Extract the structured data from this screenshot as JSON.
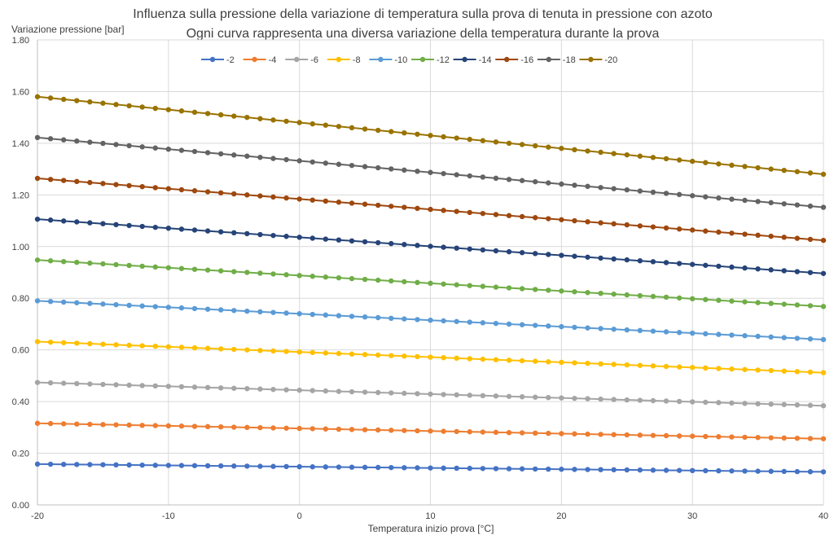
{
  "chart_data": {
    "type": "line",
    "title": "Influenza sulla pressione della variazione di temperatura sulla prova di tenuta in pressione con azoto",
    "subtitle": "Ogni curva rappresenta una diversa variazione della temperatura durante la prova",
    "xlabel": "Temperatura inizio prova [°C]",
    "ylabel": "Variazione pressione [bar]",
    "xlim": [
      -20,
      40
    ],
    "ylim": [
      0,
      1.8
    ],
    "x_ticks": [
      -20,
      -10,
      0,
      10,
      20,
      30,
      40
    ],
    "x_tick_labels": [
      "-20",
      "-10",
      "0",
      "10",
      "20",
      "30",
      "40"
    ],
    "y_ticks": [
      0,
      0.2,
      0.4,
      0.6,
      0.8,
      1.0,
      1.2,
      1.4,
      1.6,
      1.8
    ],
    "y_tick_labels": [
      "0.00",
      "0.20",
      "0.40",
      "0.60",
      "0.80",
      "1.00",
      "1.20",
      "1.40",
      "1.60",
      "1.80"
    ],
    "grid": true,
    "legend_position": "top",
    "x": [
      -20,
      -19,
      -18,
      -17,
      -16,
      -15,
      -14,
      -13,
      -12,
      -11,
      -10,
      -9,
      -8,
      -7,
      -6,
      -5,
      -4,
      -3,
      -2,
      -1,
      0,
      1,
      2,
      3,
      4,
      5,
      6,
      7,
      8,
      9,
      10,
      11,
      12,
      13,
      14,
      15,
      16,
      17,
      18,
      19,
      20,
      21,
      22,
      23,
      24,
      25,
      26,
      27,
      28,
      29,
      30,
      31,
      32,
      33,
      34,
      35,
      36,
      37,
      38,
      39,
      40
    ],
    "series": [
      {
        "name": "-2",
        "color": "#4472C4",
        "start": 0.158,
        "end": 0.128
      },
      {
        "name": "-4",
        "color": "#ED7D31",
        "start": 0.316,
        "end": 0.256
      },
      {
        "name": "-6",
        "color": "#A5A5A5",
        "start": 0.474,
        "end": 0.384
      },
      {
        "name": "-8",
        "color": "#FFC000",
        "start": 0.632,
        "end": 0.512
      },
      {
        "name": "-10",
        "color": "#5B9BD5",
        "start": 0.79,
        "end": 0.64
      },
      {
        "name": "-12",
        "color": "#70AD47",
        "start": 0.948,
        "end": 0.768
      },
      {
        "name": "-14",
        "color": "#264478",
        "start": 1.106,
        "end": 0.896
      },
      {
        "name": "-16",
        "color": "#9E480E",
        "start": 1.264,
        "end": 1.024
      },
      {
        "name": "-18",
        "color": "#636363",
        "start": 1.422,
        "end": 1.152
      },
      {
        "name": "-20",
        "color": "#997300",
        "start": 1.58,
        "end": 1.28
      }
    ]
  }
}
